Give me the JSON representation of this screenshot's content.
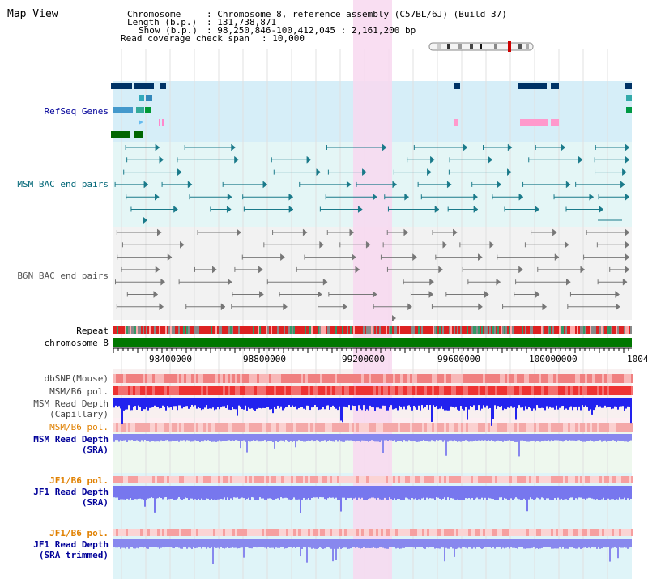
{
  "page": {
    "title": "Map View"
  },
  "info": {
    "chromosome_key": "Chromosome",
    "chromosome_val": ": Chromosome 8, reference assembly (C57BL/6J) (Build 37)",
    "length_key": "Length (b.p.)",
    "length_val": ": 131,738,871",
    "show_key": "Show (b.p.)",
    "show_val": ": 98,250,846-100,412,045 : 2,161,200 bp",
    "span_key": "Read coverage check span",
    "span_val": ": 10,000"
  },
  "tracks": {
    "refseq": "RefSeq Genes",
    "msm_bac": "MSM BAC end pairs",
    "b6n_bac": "B6N BAC end pairs",
    "repeat": "Repeat",
    "chromosome": "chromosome 8",
    "dbsnp": "dbSNP(Mouse)",
    "msm_b6_pol_1": "MSM/B6 pol.",
    "msm_read_depth_cap_1": "MSM Read Depth",
    "msm_read_depth_cap_2": "(Capillary)",
    "msm_b6_pol_2": "MSM/B6 pol.",
    "msm_read_depth_sra_1": "MSM Read Depth",
    "msm_read_depth_sra_2": "(SRA)",
    "jf1_b6_pol_1": "JF1/B6 pol.",
    "jf1_read_depth_sra_1": "JF1 Read Depth",
    "jf1_read_depth_sra_2": "(SRA)",
    "jf1_b6_pol_2": "JF1/B6 pol.",
    "jf1_read_depth_trim_1": "JF1 Read Depth",
    "jf1_read_depth_trim_2": "(SRA trimmed)"
  },
  "axis": {
    "start_bp": 98250846,
    "end_bp": 100412045,
    "ticks": [
      "98400000",
      "98800000",
      "99200000",
      "99600000",
      "100000000",
      "1004"
    ]
  },
  "colors": {
    "refseq_label": "#000099",
    "msm_label": "#006677",
    "b6n_label": "#555555",
    "pol_label": "#e08000",
    "depth_label": "#000099",
    "highlight": "#f8d8f0",
    "chromosome_bar": "#007700"
  }
}
